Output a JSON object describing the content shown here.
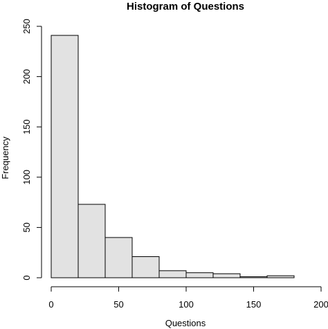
{
  "chart_data": {
    "type": "bar",
    "title": "Histogram of Questions",
    "xlabel": "Questions",
    "ylabel": "Frequency",
    "bin_edges": [
      0,
      20,
      40,
      60,
      80,
      100,
      120,
      140,
      160,
      180
    ],
    "values": [
      241,
      73,
      40,
      21,
      7,
      5,
      4,
      1,
      2
    ],
    "xlim": [
      0,
      200
    ],
    "ylim": [
      0,
      250
    ],
    "x_ticks": [
      "0",
      "50",
      "100",
      "150",
      "200"
    ],
    "y_ticks": [
      "0",
      "50",
      "100",
      "150",
      "200",
      "250"
    ],
    "grid": false,
    "bar_fill": "#e2e2e2",
    "bar_stroke": "#000000"
  }
}
